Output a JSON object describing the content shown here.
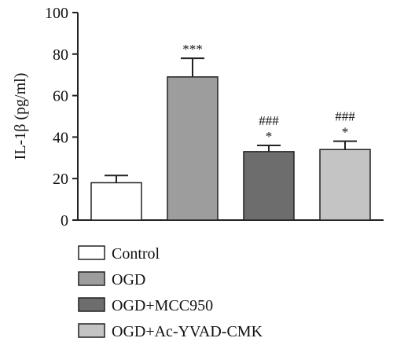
{
  "chart_data": {
    "type": "bar",
    "title": "",
    "xlabel": "",
    "ylabel": "IL-1β (pg/ml)",
    "ylim": [
      0,
      100
    ],
    "yticks": [
      "0",
      "20",
      "40",
      "60",
      "80",
      "100"
    ],
    "categories": [
      "Control",
      "OGD",
      "OGD+MCC950",
      "OGD+Ac-YVAD-CMK"
    ],
    "values": [
      18,
      69,
      33,
      34
    ],
    "errors": [
      3.5,
      9,
      3,
      4
    ],
    "colors": [
      "#ffffff",
      "#9d9d9d",
      "#6d6d6d",
      "#c4c4c4"
    ],
    "annotations": [
      [],
      [
        "***"
      ],
      [
        "###",
        "*"
      ],
      [
        "###",
        "*"
      ]
    ],
    "legend": {
      "position": "bottom",
      "entries": [
        "Control",
        "OGD",
        "OGD+MCC950",
        "OGD+Ac-YVAD-CMK"
      ]
    },
    "grid": false
  }
}
